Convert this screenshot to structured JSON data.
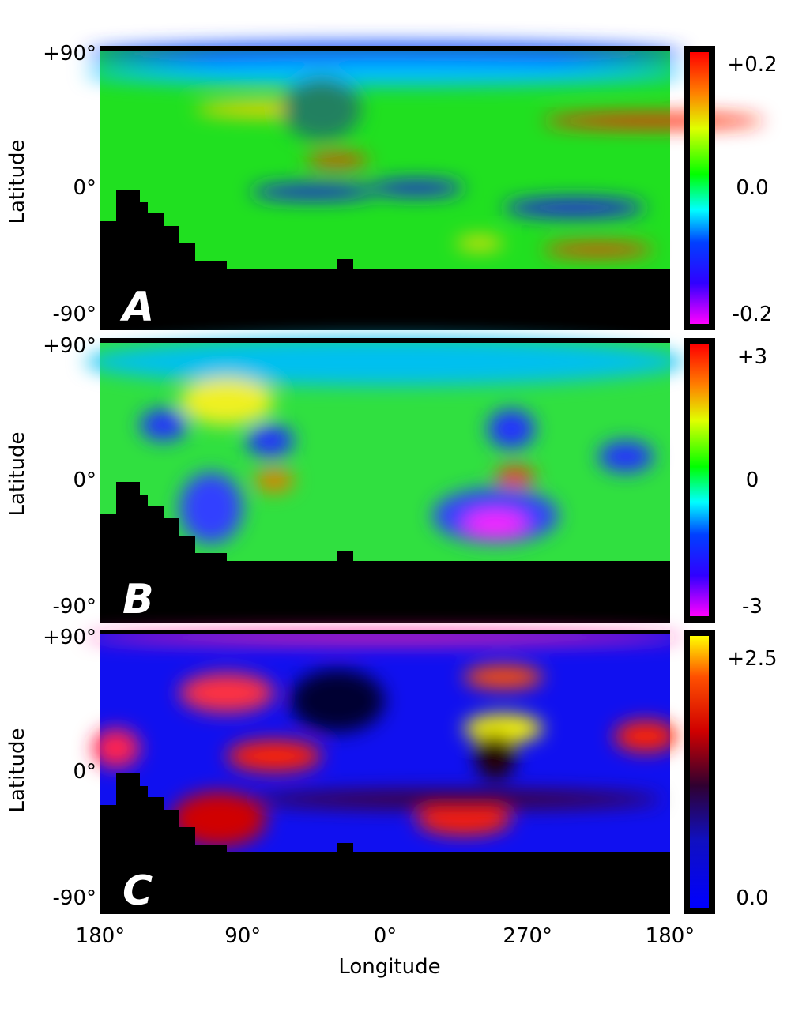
{
  "y_label": "Latitude",
  "x_label": "Longitude",
  "x_ticks": [
    "180°",
    "90°",
    "0°",
    "270°",
    "180°"
  ],
  "panels": [
    {
      "label": "A",
      "lat_ticks": [
        "+90°",
        "0°",
        "-90°"
      ],
      "colorbar_ticks": [
        "+0.2",
        "0.0",
        "-0.2"
      ]
    },
    {
      "label": "B",
      "lat_ticks": [
        "+90°",
        "0°",
        "-90°"
      ],
      "colorbar_ticks": [
        "+3",
        "0",
        "-3"
      ]
    },
    {
      "label": "C",
      "lat_ticks": [
        "+90°",
        "0°",
        "-90°"
      ],
      "colorbar_ticks": [
        "+2.5",
        "0.0"
      ]
    }
  ]
}
